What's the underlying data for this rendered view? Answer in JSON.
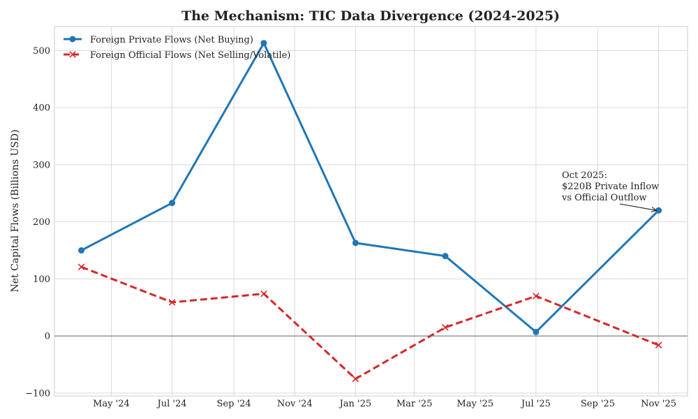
{
  "chart_data": {
    "type": "line",
    "title": "The Mechanism: TIC Data Divergence (2024-2025)",
    "xlabel": "",
    "ylabel": "Net Capital Flows (Billions USD)",
    "ylim": [
      -105,
      542
    ],
    "yticks": [
      -100,
      0,
      100,
      200,
      300,
      400,
      500
    ],
    "ytick_labels": [
      "−100",
      "0",
      "100",
      "200",
      "300",
      "400",
      "500"
    ],
    "xlim": [
      "2024-03-05",
      "2025-11-30"
    ],
    "xticks": [
      "2024-05-01",
      "2024-07-01",
      "2024-09-01",
      "2024-11-01",
      "2025-01-01",
      "2025-03-01",
      "2025-05-01",
      "2025-07-01",
      "2025-09-01",
      "2025-11-01"
    ],
    "xtick_labels": [
      "May '24",
      "Jul '24",
      "Sep '24",
      "Nov '24",
      "Jan '25",
      "Mar '25",
      "May '25",
      "Jul '25",
      "Sep '25",
      "Nov '25"
    ],
    "grid": true,
    "legend_position": "top-left",
    "series": [
      {
        "name": "Foreign Private Flows (Net Buying)",
        "color": "#1f77b4",
        "linestyle": "solid",
        "marker": "circle",
        "x": [
          "2024-04-01",
          "2024-07-01",
          "2024-10-01",
          "2025-01-01",
          "2025-04-01",
          "2025-07-01",
          "2025-11-01"
        ],
        "values": [
          150,
          233,
          513,
          163,
          140,
          7,
          220
        ]
      },
      {
        "name": "Foreign Official Flows (Net Selling/Volatile)",
        "color": "#d62728",
        "linestyle": "dashed",
        "marker": "x",
        "x": [
          "2024-04-01",
          "2024-07-01",
          "2024-10-01",
          "2025-01-01",
          "2025-04-01",
          "2025-07-01",
          "2025-11-01"
        ],
        "values": [
          121,
          59,
          74,
          -75,
          15,
          70,
          -16
        ]
      }
    ],
    "reference_line": {
      "y": 0,
      "color": "#666666"
    },
    "annotation": {
      "lines": [
        "Oct 2025:",
        "$220B Private Inflow",
        "vs Official Outflow"
      ],
      "target_x": "2025-11-01",
      "target_y": 220
    }
  }
}
